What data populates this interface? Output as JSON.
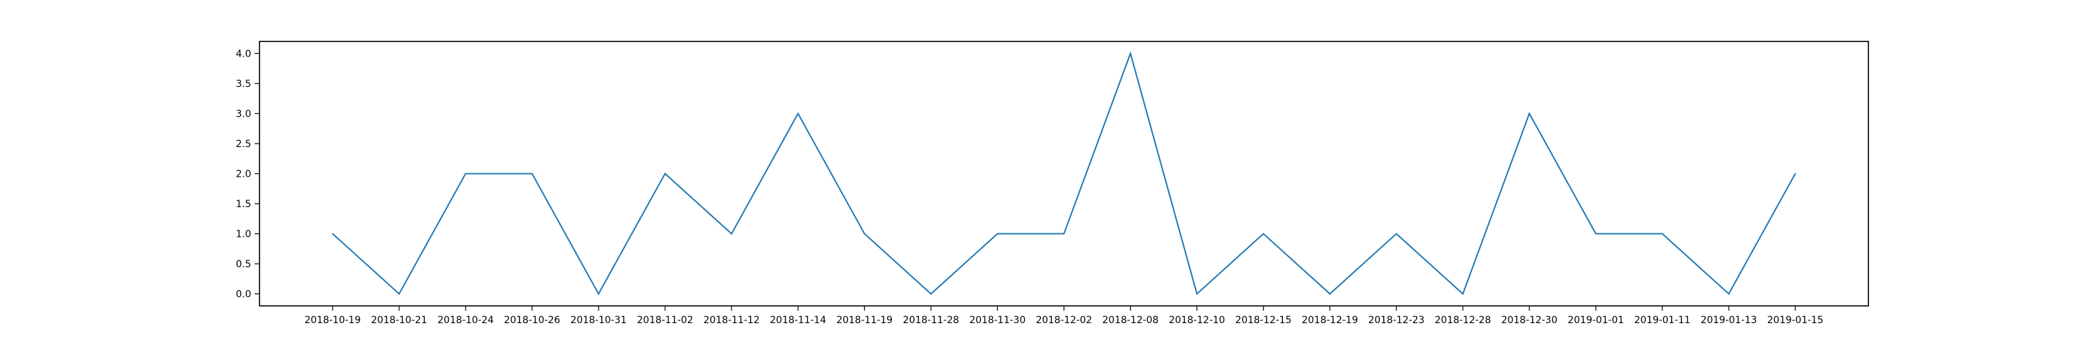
{
  "chart_data": {
    "type": "line",
    "title": "",
    "xlabel": "",
    "ylabel": "",
    "categories": [
      "2018-10-19",
      "2018-10-21",
      "2018-10-24",
      "2018-10-26",
      "2018-10-31",
      "2018-11-02",
      "2018-11-12",
      "2018-11-14",
      "2018-11-19",
      "2018-11-28",
      "2018-11-30",
      "2018-12-02",
      "2018-12-08",
      "2018-12-10",
      "2018-12-15",
      "2018-12-19",
      "2018-12-23",
      "2018-12-28",
      "2018-12-30",
      "2019-01-01",
      "2019-01-11",
      "2019-01-13",
      "2019-01-15"
    ],
    "series": [
      {
        "color": "#1f77b4",
        "values": [
          1,
          0,
          2,
          2,
          0,
          2,
          1,
          3,
          1,
          0,
          1,
          1,
          4,
          0,
          1,
          0,
          1,
          0,
          3,
          1,
          1,
          0,
          2
        ]
      }
    ],
    "yticks": [
      "0.0",
      "0.5",
      "1.0",
      "1.5",
      "2.0",
      "2.5",
      "3.0",
      "3.5",
      "4.0"
    ],
    "ylim": [
      -0.2,
      4.2
    ],
    "grid": false,
    "legend": "none"
  }
}
